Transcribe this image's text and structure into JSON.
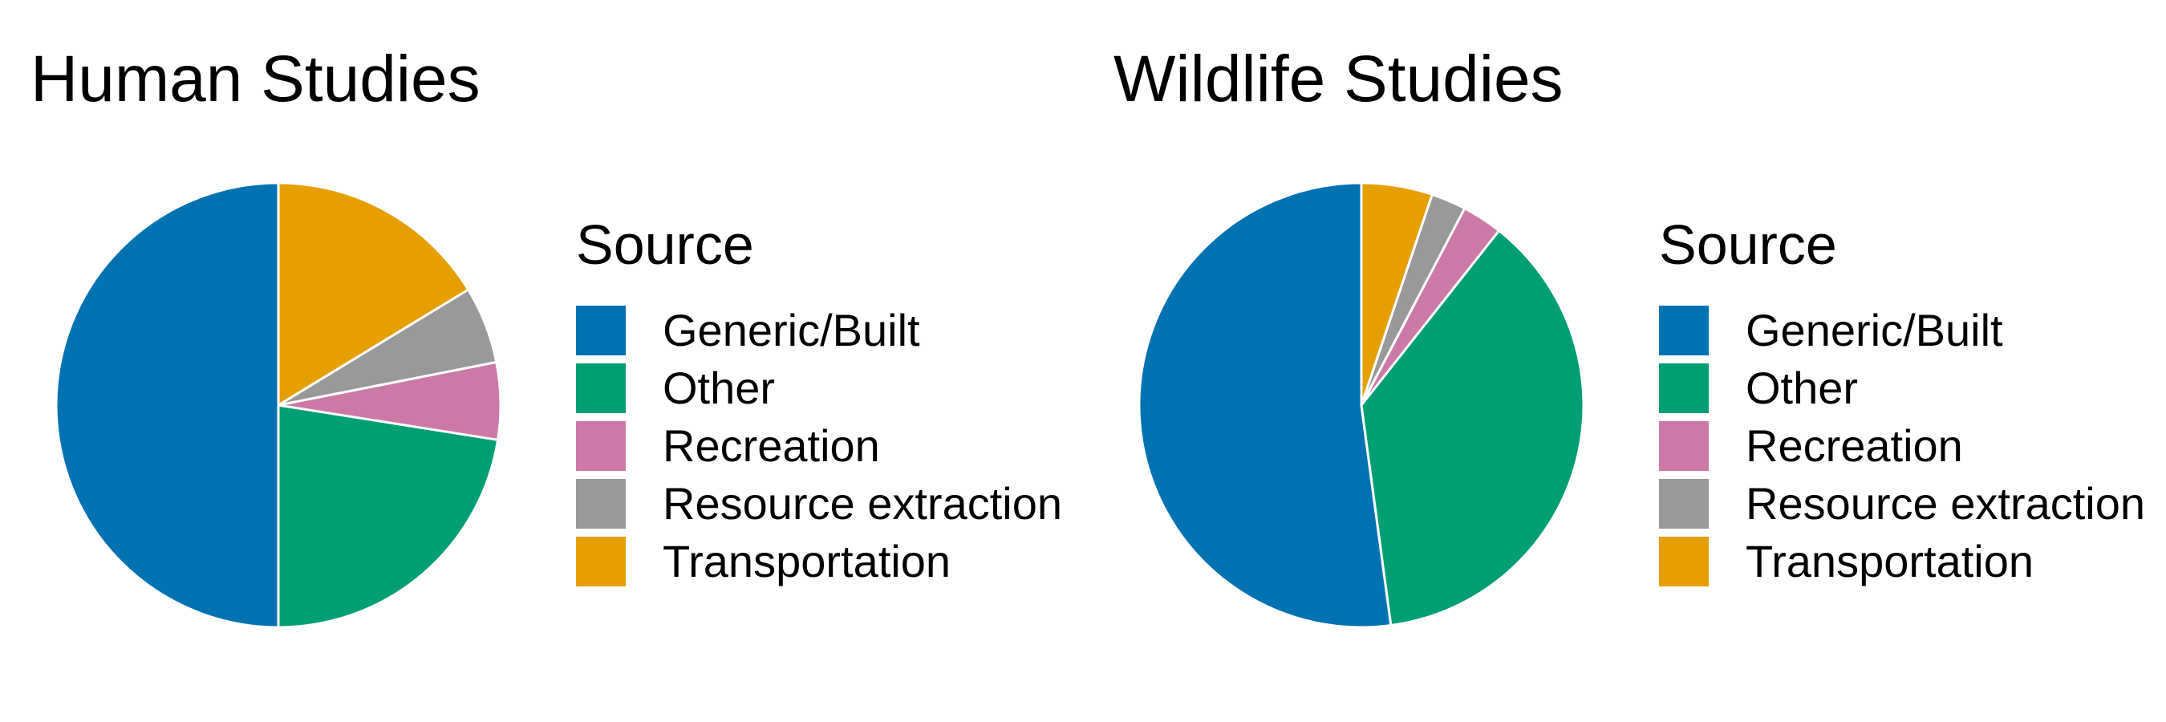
{
  "chart_data": [
    {
      "type": "pie",
      "title": "Human Studies",
      "legend_title": "Source",
      "legend_placement": "right",
      "categories": [
        "Generic/Built",
        "Other",
        "Recreation",
        "Resource extraction",
        "Transportation"
      ],
      "values": [
        50,
        22.5,
        5.6,
        5.6,
        16.3
      ],
      "colors": [
        "#0072B2",
        "#009E73",
        "#CC79A7",
        "#999999",
        "#E69F00"
      ]
    },
    {
      "type": "pie",
      "title": "Wildlife Studies",
      "legend_title": "Source",
      "legend_placement": "right",
      "categories": [
        "Generic/Built",
        "Other",
        "Recreation",
        "Resource extraction",
        "Transportation"
      ],
      "values": [
        51.5,
        36.8,
        2.9,
        2.5,
        5.1
      ],
      "colors": [
        "#0072B2",
        "#009E73",
        "#CC79A7",
        "#999999",
        "#E69F00"
      ]
    }
  ]
}
